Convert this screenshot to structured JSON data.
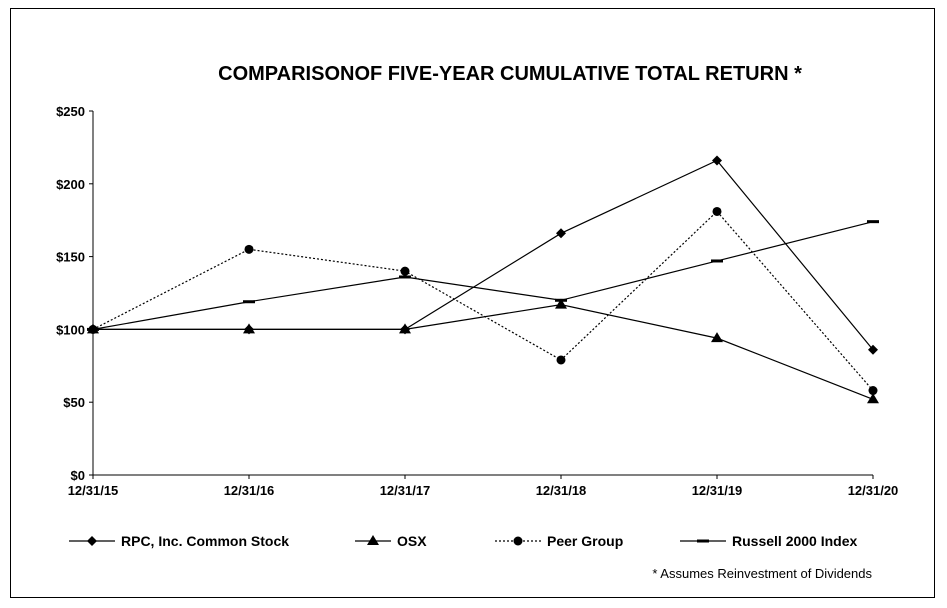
{
  "chart_data": {
    "type": "line",
    "title": "COMPARISONOF FIVE-YEAR CUMULATIVE TOTAL RETURN *",
    "footnote": "* Assumes Reinvestment  of Dividends",
    "categories": [
      "12/31/15",
      "12/31/16",
      "12/31/17",
      "12/31/18",
      "12/31/19",
      "12/31/20"
    ],
    "ylim": [
      0,
      250
    ],
    "yticks": [
      0,
      50,
      100,
      150,
      200,
      250
    ],
    "ytick_labels": [
      "$0",
      "$50",
      "$100",
      "$150",
      "$200",
      "$250"
    ],
    "grid": false,
    "legend_position": "bottom",
    "series": [
      {
        "name": "RPC, Inc. Common Stock",
        "marker": "diamond",
        "dash": "solid",
        "color": "#000000",
        "values": [
          100,
          100,
          100,
          166,
          216,
          86
        ]
      },
      {
        "name": "OSX",
        "marker": "triangle",
        "dash": "solid",
        "color": "#000000",
        "values": [
          100,
          100,
          100,
          117,
          94,
          52
        ]
      },
      {
        "name": "Peer Group",
        "marker": "circle",
        "dash": "dotted",
        "color": "#000000",
        "values": [
          100,
          155,
          140,
          79,
          181,
          58
        ]
      },
      {
        "name": "Russell 2000 Index",
        "marker": "dash",
        "dash": "solid",
        "color": "#000000",
        "values": [
          100,
          119,
          136,
          120,
          147,
          174
        ]
      }
    ]
  }
}
